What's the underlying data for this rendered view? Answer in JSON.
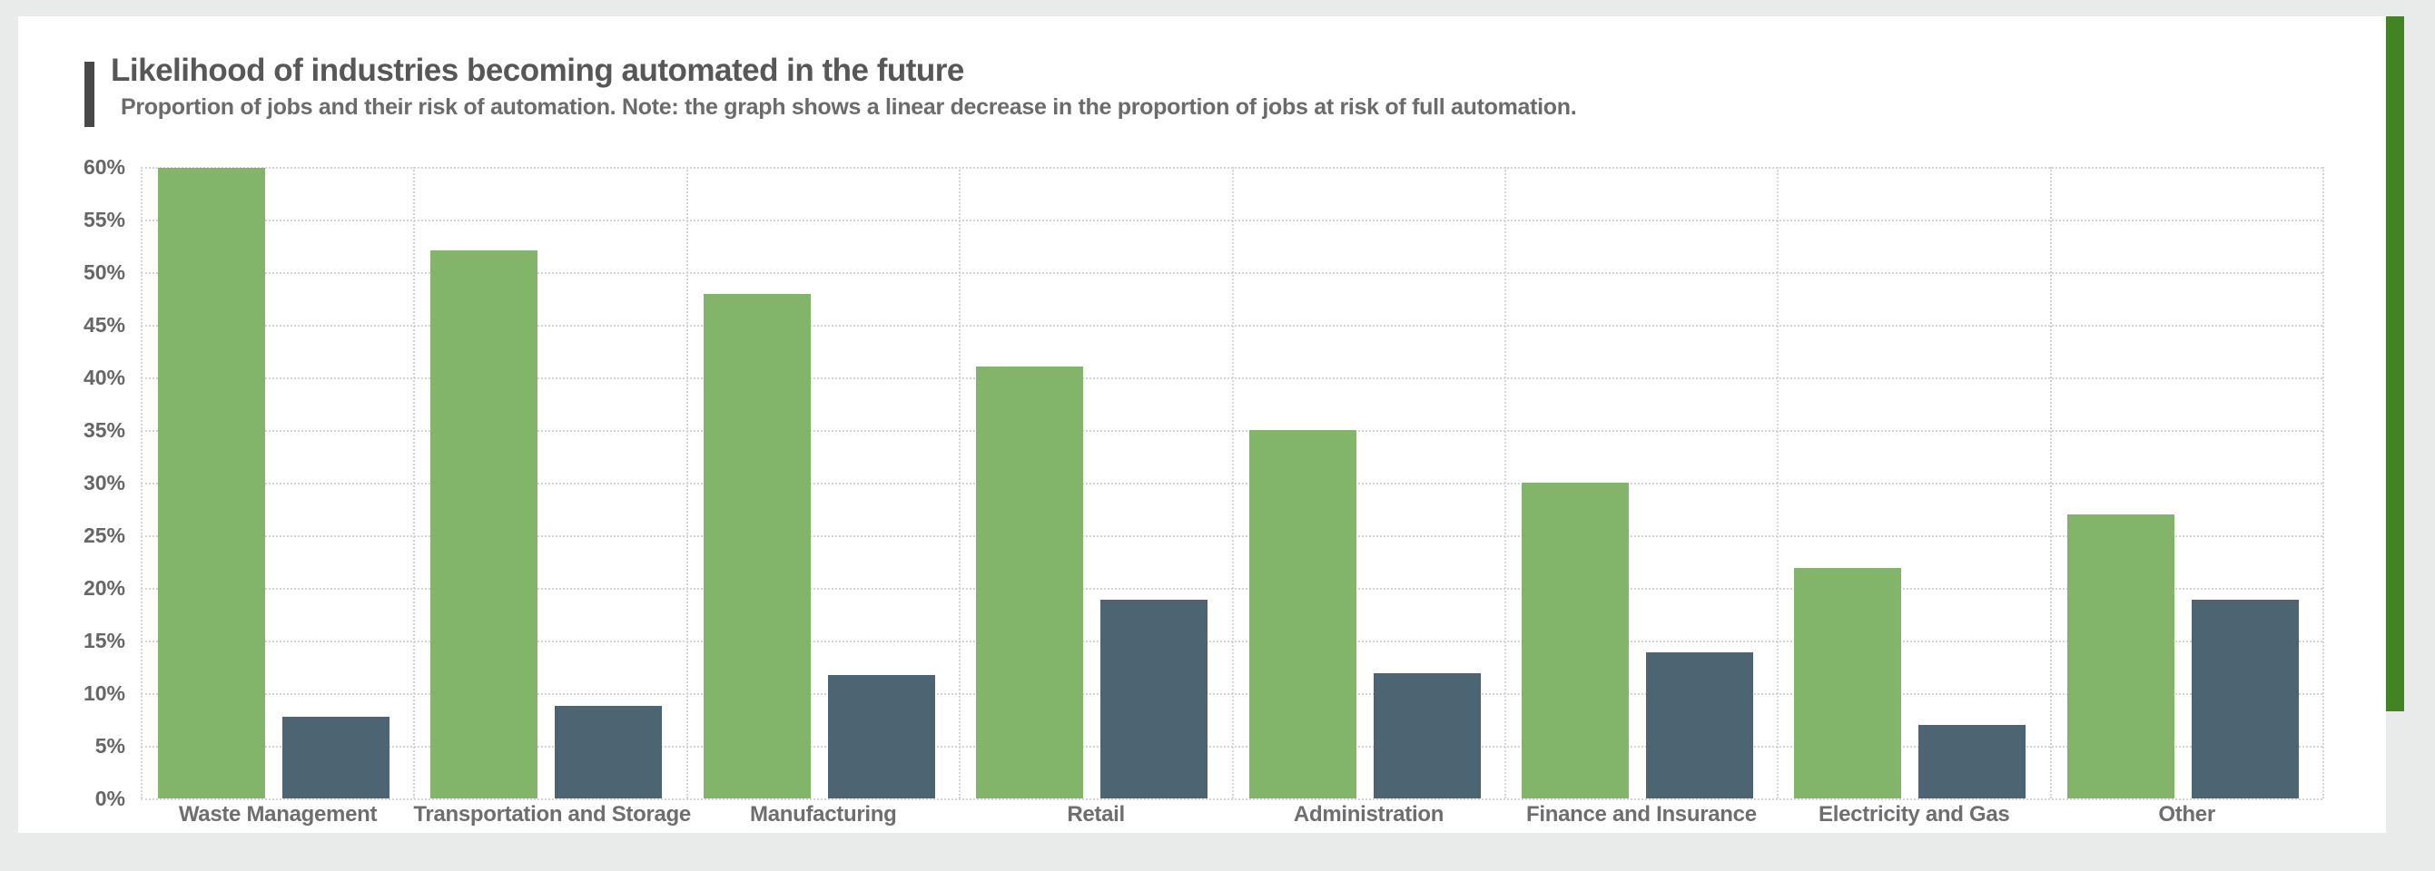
{
  "page": {
    "background_color": "#e9ebea",
    "card_color": "#ffffff"
  },
  "header": {
    "title": "Likelihood of industries becoming automated in the future",
    "subtitle": "Proportion of jobs and their risk of automation. Note: the graph shows a linear decrease in the proportion of jobs at risk of full automation.",
    "accent_bar_color": "#484848"
  },
  "scrollbar": {
    "color": "#428424"
  },
  "chart_data": {
    "type": "bar",
    "title": "Likelihood of industries becoming automated in the future",
    "subtitle": "Proportion of jobs and their risk of automation. Note: the graph shows a linear decrease in the proportion of jobs at risk of full automation.",
    "categories": [
      "Waste Management",
      "Transportation and Storage",
      "Manufacturing",
      "Retail",
      "Administration",
      "Finance and Insurance",
      "Electricity and Gas",
      "Other"
    ],
    "series": [
      {
        "name": "green-series",
        "color": "#82b56a",
        "values": [
          59.9,
          52.1,
          47.9,
          41.0,
          35.0,
          30.0,
          21.9,
          27.0
        ]
      },
      {
        "name": "dark-series",
        "color": "#4d6572",
        "values": [
          7.8,
          8.8,
          11.7,
          18.9,
          11.9,
          13.9,
          7.0,
          18.9
        ]
      }
    ],
    "xlabel": "",
    "ylabel": "",
    "ylim": [
      0,
      60
    ],
    "ytick_step": 5,
    "ytick_suffix": "%",
    "ytick_labels": [
      "0%",
      "5%",
      "10%",
      "15%",
      "20%",
      "25%",
      "30%",
      "35%",
      "40%",
      "45%",
      "50%",
      "55%",
      "60%"
    ],
    "grid": "dotted",
    "legend": "none",
    "gridline_color": "#d4d4d4",
    "tick_label_color": "#666666",
    "category_label_color": "#6e6e6e"
  }
}
